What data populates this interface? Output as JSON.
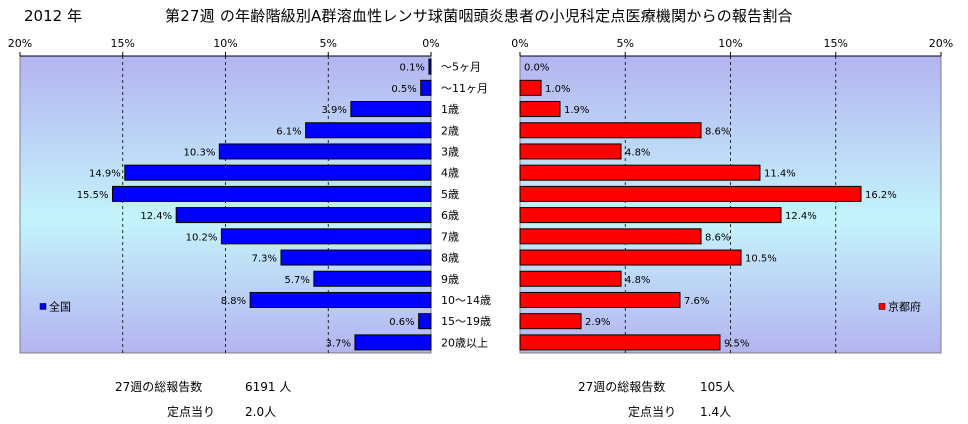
{
  "title": {
    "year": "2012 年",
    "main": "第27週 の年齢階級別A群溶血性レンサ球菌咽頭炎患者の小児科定点医療機関からの報告割合"
  },
  "chart_data": [
    {
      "type": "bar",
      "orientation": "horizontal",
      "direction": "right-to-left",
      "series": [
        {
          "name": "全国",
          "color": "#0000ff",
          "values": [
            0.1,
            0.5,
            3.9,
            6.1,
            10.3,
            14.9,
            15.5,
            12.4,
            10.2,
            7.3,
            5.7,
            8.8,
            0.6,
            3.7
          ],
          "value_labels": [
            "0.1%",
            "0.5%",
            "3.9%",
            "6.1%",
            "10.3%",
            "14.9%",
            "15.5%",
            "12.4%",
            "10.2%",
            "7.3%",
            "5.7%",
            "8.8%",
            "0.6%",
            "3.7%"
          ]
        }
      ],
      "xlim": [
        0,
        20
      ],
      "xticks": [
        "0%",
        "5%",
        "10%",
        "15%",
        "20%"
      ],
      "legend": "bottom-left",
      "grid": true
    },
    {
      "type": "bar",
      "orientation": "horizontal",
      "direction": "left-to-right",
      "series": [
        {
          "name": "京都府",
          "color": "#ff0000",
          "values": [
            0.0,
            1.0,
            1.9,
            8.6,
            4.8,
            11.4,
            16.2,
            12.4,
            8.6,
            10.5,
            4.8,
            7.6,
            2.9,
            9.5
          ],
          "value_labels": [
            "0.0%",
            "1.0%",
            "1.9%",
            "8.6%",
            "4.8%",
            "11.4%",
            "16.2%",
            "12.4%",
            "8.6%",
            "10.5%",
            "4.8%",
            "7.6%",
            "2.9%",
            "9.5%"
          ]
        }
      ],
      "xlim": [
        0,
        20
      ],
      "xticks": [
        "0%",
        "5%",
        "10%",
        "15%",
        "20%"
      ],
      "legend": "bottom-right",
      "grid": true
    }
  ],
  "categories": [
    "～5ヶ月",
    "～11ヶ月",
    "1歳",
    "2歳",
    "3歳",
    "4歳",
    "5歳",
    "6歳",
    "7歳",
    "8歳",
    "9歳",
    "10～14歳",
    "15～19歳",
    "20歳以上"
  ],
  "footer": {
    "national": {
      "total_label": "27週の総報告数",
      "total_value": "6191 人",
      "per_label": "定点当り",
      "per_value": "2.0人"
    },
    "kyoto": {
      "total_label": "27週の総報告数",
      "total_value": "105人",
      "per_label": "定点当り",
      "per_value": "1.4人"
    }
  },
  "colors": {
    "plot_bg_top": "#b4b4f0",
    "plot_bg_mid": "#c4f4fc",
    "national_bar": "#0000ff",
    "kyoto_bar": "#ff0000"
  }
}
